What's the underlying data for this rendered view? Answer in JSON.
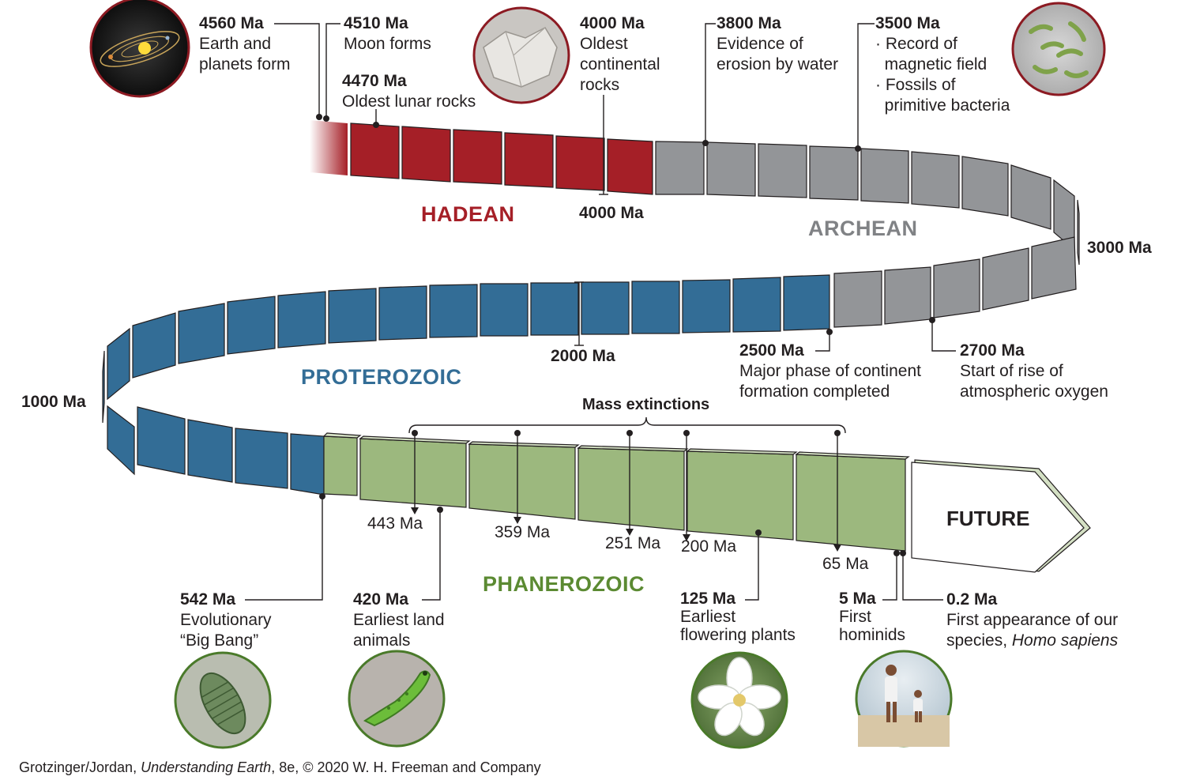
{
  "eons": {
    "hadean": {
      "label": "HADEAN",
      "color": "#a51f27"
    },
    "archean": {
      "label": "ARCHEAN",
      "color": "#808285"
    },
    "proterozoic": {
      "label": "PROTEROZOIC",
      "color": "#336d96"
    },
    "phanerozoic": {
      "label": "PHANEROZOIC",
      "color": "#5b8a32"
    }
  },
  "future": {
    "label": "FUTURE"
  },
  "mass_extinctions": {
    "label": "Mass extinctions"
  },
  "boundary_ages": {
    "hadean_archean": "4000 Ma",
    "archean_mid": "3000 Ma",
    "proterozoic_mid": "2000 Ma",
    "proterozoic_turn": "1000 Ma"
  },
  "events": {
    "e4560": {
      "age": "4560 Ma",
      "lines": [
        "Earth and",
        "planets form"
      ]
    },
    "e4510": {
      "age": "4510 Ma",
      "lines": [
        "Moon forms"
      ]
    },
    "e4470": {
      "age": "4470 Ma",
      "lines": [
        "Oldest lunar rocks"
      ]
    },
    "e4000": {
      "age": "4000 Ma",
      "lines": [
        "Oldest",
        "continental",
        "rocks"
      ]
    },
    "e3800": {
      "age": "3800 Ma",
      "lines": [
        "Evidence of",
        "erosion by water"
      ]
    },
    "e3500": {
      "age": "3500 Ma",
      "lines": [
        "· Record of",
        "  magnetic field",
        "· Fossils of",
        "  primitive bacteria"
      ]
    },
    "e2500": {
      "age": "2500 Ma",
      "lines": [
        "Major phase of continent",
        "formation completed"
      ]
    },
    "e2700": {
      "age": "2700 Ma",
      "lines": [
        "Start of rise of",
        "atmospheric oxygen"
      ]
    },
    "e542": {
      "age": "542 Ma",
      "lines": [
        "Evolutionary",
        "“Big Bang”"
      ]
    },
    "e420": {
      "age": "420 Ma",
      "lines": [
        "Earliest land",
        "animals"
      ]
    },
    "e125": {
      "age": "125 Ma",
      "lines": [
        "Earliest",
        "flowering plants"
      ]
    },
    "e5": {
      "age": "5 Ma",
      "lines": [
        "First",
        "hominids"
      ]
    },
    "e02": {
      "age": "0.2 Ma",
      "line1": "First appearance of our",
      "line2_pre": "species, ",
      "line2_italic": "Homo sapiens"
    }
  },
  "extinctions": [
    "443 Ma",
    "359 Ma",
    "251 Ma",
    "200 Ma",
    "65 Ma"
  ],
  "credit": {
    "pre": "Grotzinger/Jordan, ",
    "italic": "Understanding Earth",
    "post": ", 8e, © 2020 W. H. Freeman and Company"
  }
}
